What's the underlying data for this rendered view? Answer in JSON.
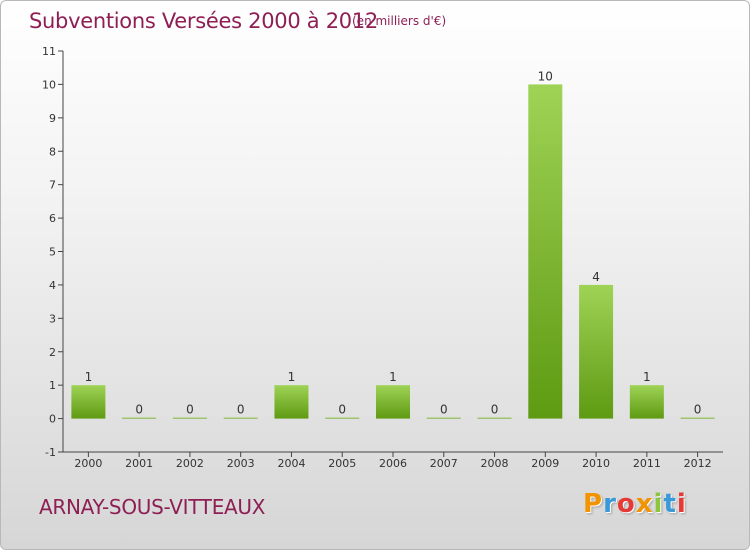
{
  "header": {
    "title": "Subventions Versées 2000 à 2012",
    "subtitle": "(en milliers d'€)"
  },
  "footer": {
    "commune": "ARNAY-SOUS-VITTEAUX",
    "logo": [
      "P",
      "r",
      "o",
      "x",
      "i",
      "t",
      "i"
    ]
  },
  "colors": {
    "title": "#8e1f55",
    "bar_light": "#9fd356",
    "bar_dark": "#5e9a12",
    "logo": [
      "#f29400",
      "#3a9ad9",
      "#e53935",
      "#f29400",
      "#8cc63f",
      "#3a9ad9",
      "#e53935"
    ]
  },
  "chart_data": {
    "type": "bar",
    "categories": [
      "2000",
      "2001",
      "2002",
      "2003",
      "2004",
      "2005",
      "2006",
      "2007",
      "2008",
      "2009",
      "2010",
      "2011",
      "2012"
    ],
    "values": [
      1,
      0,
      0,
      0,
      1,
      0,
      1,
      0,
      0,
      10,
      4,
      1,
      0
    ],
    "data_labels": [
      "1",
      "0",
      "0",
      "0",
      "1",
      "0",
      "1",
      "0",
      "0",
      "10",
      "4",
      "1",
      "0"
    ],
    "y_ticks": [
      -1,
      0,
      1,
      2,
      3,
      4,
      5,
      6,
      7,
      8,
      9,
      10,
      11
    ],
    "y_tick_labels": [
      "-1",
      "0",
      "1",
      "2",
      "3",
      "4",
      "5",
      "6",
      "7",
      "8",
      "9",
      "10",
      "11"
    ],
    "title": "Subventions Versées 2000 à 2012",
    "xlabel": "",
    "ylabel": "",
    "ylim": [
      -1,
      11
    ],
    "grid": false,
    "legend": "none"
  }
}
